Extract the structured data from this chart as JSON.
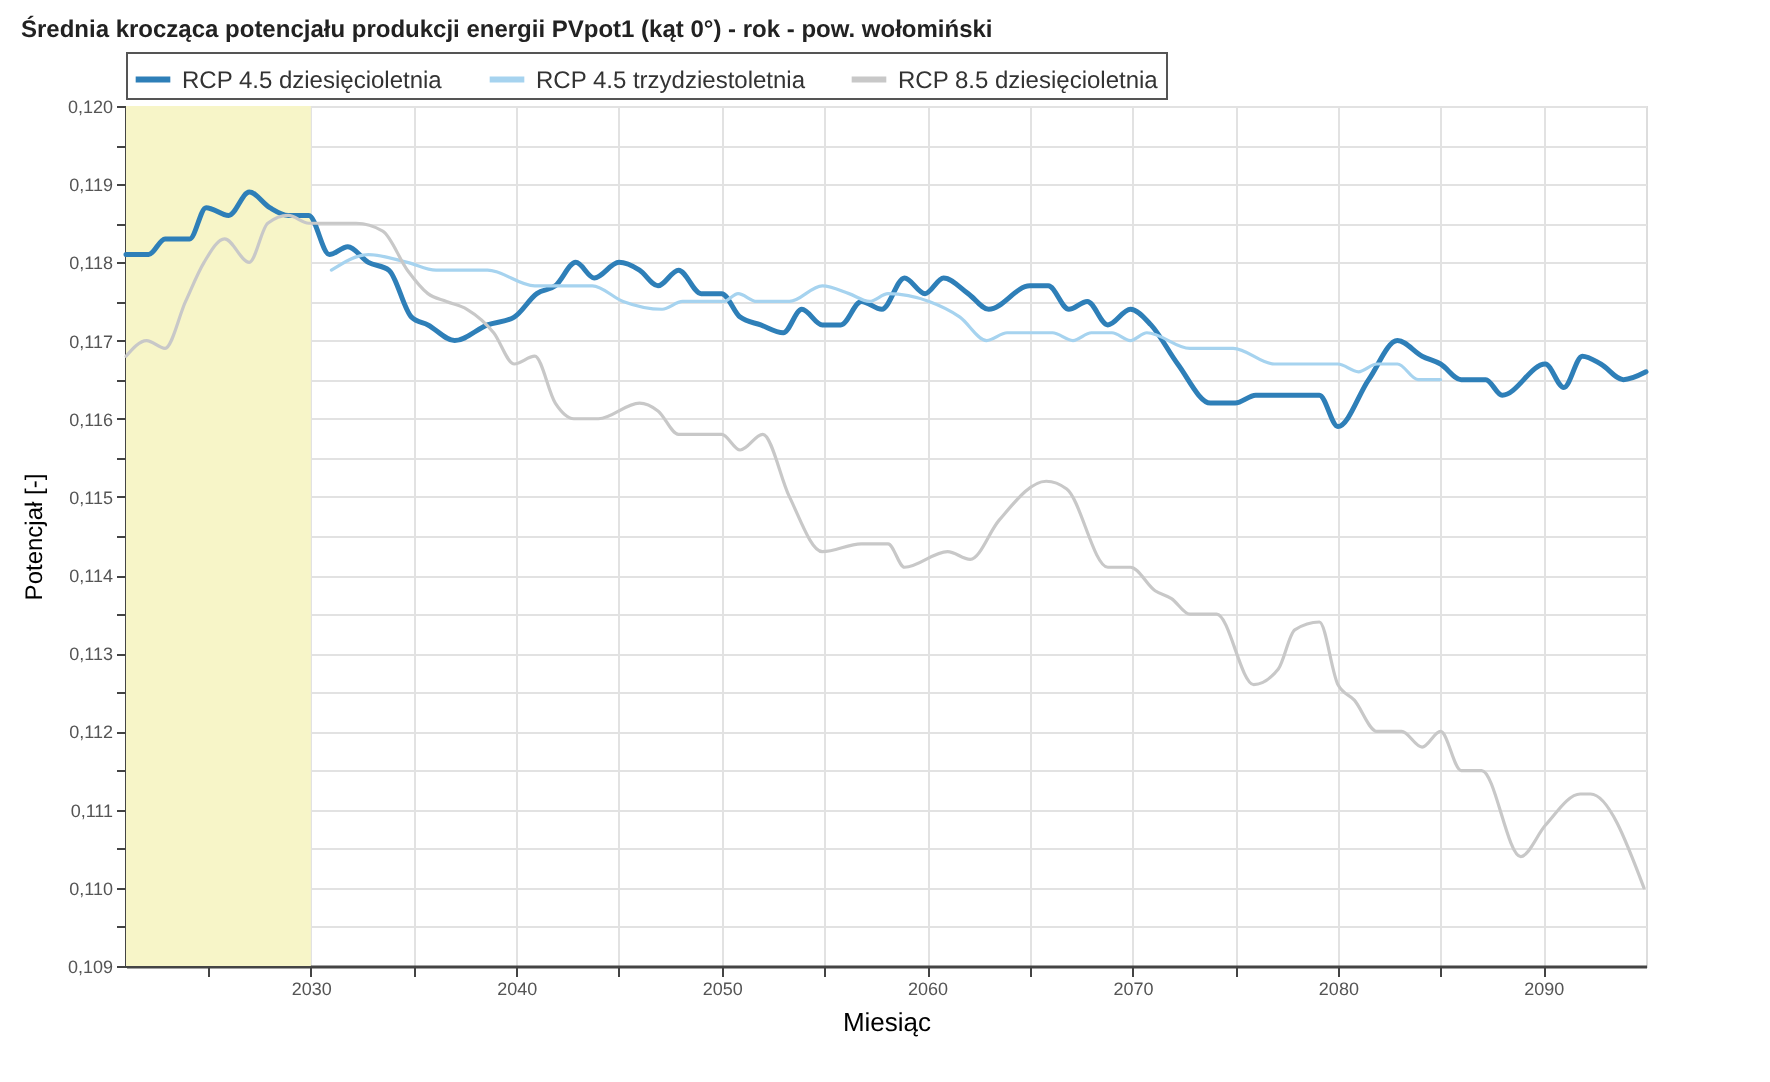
{
  "chart_data": {
    "type": "line",
    "title": "Średnia krocząca potencjału produkcji energii PVpot1 (kąt 0°) - rok - pow. wołomiński",
    "xlabel": "Miesiąc",
    "ylabel": "Potencjał [-]",
    "xlim": [
      2021,
      2095
    ],
    "xticks": [
      {
        "value": 2025,
        "label": null
      },
      2030,
      {
        "value": 2035,
        "label": null
      },
      2040,
      {
        "value": 2045,
        "label": null
      },
      2050,
      {
        "value": 2055,
        "label": null
      },
      2060,
      {
        "value": 2065,
        "label": null
      },
      2070,
      {
        "value": 2075,
        "label": null
      },
      2080,
      {
        "value": 2085,
        "label": null
      },
      2090
    ],
    "ylim": [
      0.109,
      0.12
    ],
    "yticks": [
      {
        "value": 0.109,
        "label": "0,109"
      },
      {
        "value": 0.1095,
        "label": null
      },
      {
        "value": 0.11,
        "label": "0,110"
      },
      {
        "value": 0.1105,
        "label": null
      },
      {
        "value": 0.111,
        "label": "0,111"
      },
      {
        "value": 0.1115,
        "label": null
      },
      {
        "value": 0.112,
        "label": "0,112"
      },
      {
        "value": 0.1125,
        "label": null
      },
      {
        "value": 0.113,
        "label": "0,113"
      },
      {
        "value": 0.1135,
        "label": null
      },
      {
        "value": 0.114,
        "label": "0,114"
      },
      {
        "value": 0.1145,
        "label": null
      },
      {
        "value": 0.115,
        "label": "0,115"
      },
      {
        "value": 0.1155,
        "label": null
      },
      {
        "value": 0.116,
        "label": "0,116"
      },
      {
        "value": 0.1165,
        "label": null
      },
      {
        "value": 0.117,
        "label": "0,117"
      },
      {
        "value": 0.1175,
        "label": null
      },
      {
        "value": 0.118,
        "label": "0,118"
      },
      {
        "value": 0.1185,
        "label": null
      },
      {
        "value": 0.119,
        "label": "0,119"
      },
      {
        "value": 0.1195,
        "label": null
      },
      {
        "value": 0.12,
        "label": "0,120"
      }
    ],
    "grid": true,
    "legend": "top",
    "marker": "none",
    "line_style": "solid",
    "bands": [
      {
        "axis": "x",
        "from": 2021,
        "to": 2030,
        "color": "#f7f5c8"
      }
    ],
    "series": [
      {
        "name": "RCP 4.5 dziesięcioletnia",
        "color": "#2e7fb8",
        "x": [
          2021.0,
          2022.1,
          2022.9,
          2024.1,
          2024.9,
          2026.0,
          2027.0,
          2028.0,
          2028.9,
          2029.9,
          2030.9,
          2031.8,
          2032.8,
          2033.8,
          2034.9,
          2035.7,
          2037.0,
          2038.6,
          2039.9,
          2041.0,
          2041.9,
          2042.9,
          2043.8,
          2045.0,
          2046.0,
          2046.9,
          2047.9,
          2049.0,
          2050.0,
          2050.9,
          2051.9,
          2053.0,
          2053.9,
          2054.9,
          2055.8,
          2056.8,
          2057.8,
          2058.9,
          2059.9,
          2060.8,
          2062.0,
          2063.0,
          2065.0,
          2065.9,
          2066.9,
          2067.8,
          2068.8,
          2069.9,
          2070.9,
          2072.2,
          2073.8,
          2075.0,
          2076.0,
          2079.1,
          2080.0,
          2081.5,
          2082.9,
          2084.1,
          2085.0,
          2086.0,
          2087.2,
          2088.0,
          2090.1,
          2091.0,
          2091.9,
          2092.8,
          2093.9,
          2095.0
        ],
        "values": [
          0.1181,
          0.1181,
          0.1183,
          0.1183,
          0.1187,
          0.1186,
          0.1189,
          0.1187,
          0.1186,
          0.1186,
          0.1181,
          0.1182,
          0.118,
          0.1179,
          0.1173,
          0.1172,
          0.117,
          0.1172,
          0.1173,
          0.1176,
          0.1177,
          0.118,
          0.1178,
          0.118,
          0.1179,
          0.1177,
          0.1179,
          0.1176,
          0.1176,
          0.1173,
          0.1172,
          0.1171,
          0.1174,
          0.1172,
          0.1172,
          0.1175,
          0.1174,
          0.1178,
          0.1176,
          0.1178,
          0.1176,
          0.1174,
          0.1177,
          0.1177,
          0.1174,
          0.1175,
          0.1172,
          0.1174,
          0.1172,
          0.1167,
          0.1162,
          0.1162,
          0.1163,
          0.1163,
          0.1159,
          0.1165,
          0.117,
          0.1168,
          0.1167,
          0.1165,
          0.1165,
          0.1163,
          0.1167,
          0.1164,
          0.1168,
          0.1167,
          0.1165,
          0.1166
        ]
      },
      {
        "name": "RCP 4.5 trzydziestoletnia",
        "color": "#a6d3ef",
        "x": [
          2031.0,
          2032.8,
          2034.7,
          2036.1,
          2038.6,
          2040.9,
          2043.7,
          2045.2,
          2047.1,
          2048.1,
          2050.1,
          2050.8,
          2051.7,
          2053.3,
          2054.9,
          2056.2,
          2057.2,
          2058.1,
          2060.1,
          2061.6,
          2062.9,
          2063.9,
          2066.1,
          2067.1,
          2068.0,
          2069.0,
          2069.9,
          2070.7,
          2072.8,
          2074.9,
          2076.9,
          2080.0,
          2081.0,
          2081.9,
          2082.9,
          2083.9,
          2085.0
        ],
        "values": [
          0.1179,
          0.1181,
          0.118,
          0.1179,
          0.1179,
          0.1177,
          0.1177,
          0.1175,
          0.1174,
          0.1175,
          0.1175,
          0.1176,
          0.1175,
          0.1175,
          0.1177,
          0.1176,
          0.1175,
          0.1176,
          0.1175,
          0.1173,
          0.117,
          0.1171,
          0.1171,
          0.117,
          0.1171,
          0.1171,
          0.117,
          0.1171,
          0.1169,
          0.1169,
          0.1167,
          0.1167,
          0.1166,
          0.1167,
          0.1167,
          0.1165,
          0.1165
        ]
      },
      {
        "name": "RCP 8.5 dziesięcioletnia",
        "color": "#c8c8c8",
        "x": [
          2021.0,
          2022.0,
          2022.9,
          2023.9,
          2024.8,
          2025.8,
          2027.0,
          2027.9,
          2028.9,
          2029.9,
          2032.2,
          2033.5,
          2034.7,
          2035.7,
          2036.6,
          2037.6,
          2038.9,
          2039.9,
          2040.9,
          2041.9,
          2042.8,
          2044.0,
          2046.0,
          2046.9,
          2047.9,
          2050.0,
          2050.9,
          2052.0,
          2053.3,
          2054.9,
          2056.8,
          2058.1,
          2058.9,
          2061.0,
          2062.1,
          2063.5,
          2065.8,
          2066.8,
          2068.8,
          2069.9,
          2071.1,
          2071.9,
          2072.8,
          2074.1,
          2075.9,
          2077.1,
          2077.9,
          2079.1,
          2080.0,
          2080.8,
          2081.9,
          2083.1,
          2084.1,
          2085.0,
          2086.0,
          2087.0,
          2088.9,
          2090.1,
          2091.8,
          2092.3,
          2094.9
        ],
        "values": [
          0.1168,
          0.117,
          0.1169,
          0.1175,
          0.118,
          0.1183,
          0.118,
          0.1185,
          0.1186,
          0.1185,
          0.1185,
          0.1184,
          0.1179,
          0.1176,
          0.1175,
          0.1174,
          0.1171,
          0.1167,
          0.1168,
          0.1162,
          0.116,
          0.116,
          0.1162,
          0.1161,
          0.1158,
          0.1158,
          0.1156,
          0.1158,
          0.115,
          0.1143,
          0.1144,
          0.1144,
          0.1141,
          0.1143,
          0.1142,
          0.1147,
          0.1152,
          0.1151,
          0.1141,
          0.1141,
          0.1138,
          0.1137,
          0.1135,
          0.1135,
          0.1126,
          0.1128,
          0.1133,
          0.1134,
          0.1126,
          0.1124,
          0.112,
          0.112,
          0.1118,
          0.112,
          0.1115,
          0.1115,
          0.1104,
          0.1108,
          0.1112,
          0.1112,
          0.11
        ]
      }
    ]
  }
}
